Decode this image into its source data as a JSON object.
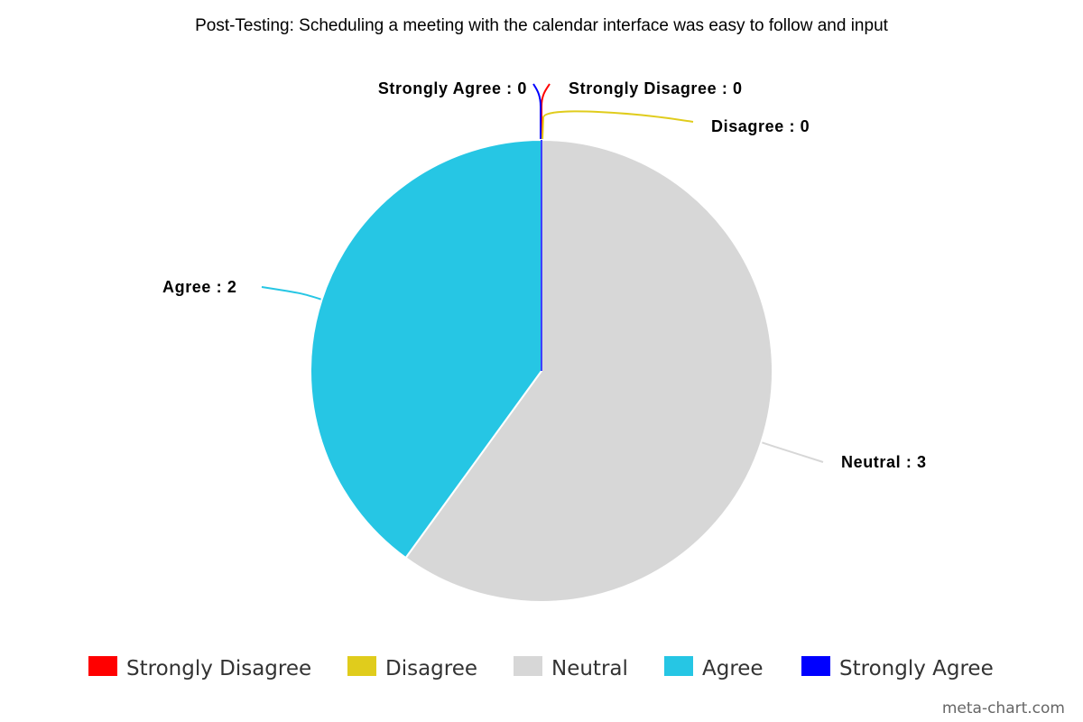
{
  "chart_data": {
    "type": "pie",
    "title": "Post-Testing: Scheduling a meeting with the calendar interface was easy to follow and input",
    "slices": [
      {
        "label": "Strongly Disagree",
        "value": 0,
        "color": "#ff0000"
      },
      {
        "label": "Disagree",
        "value": 0,
        "color": "#e0cc1c"
      },
      {
        "label": "Neutral",
        "value": 3,
        "color": "#d7d7d7"
      },
      {
        "label": "Agree",
        "value": 2,
        "color": "#26c6e4"
      },
      {
        "label": "Strongly Agree",
        "value": 0,
        "color": "#0000ff"
      }
    ],
    "legend_position": "bottom",
    "credit": "meta-chart.com"
  }
}
